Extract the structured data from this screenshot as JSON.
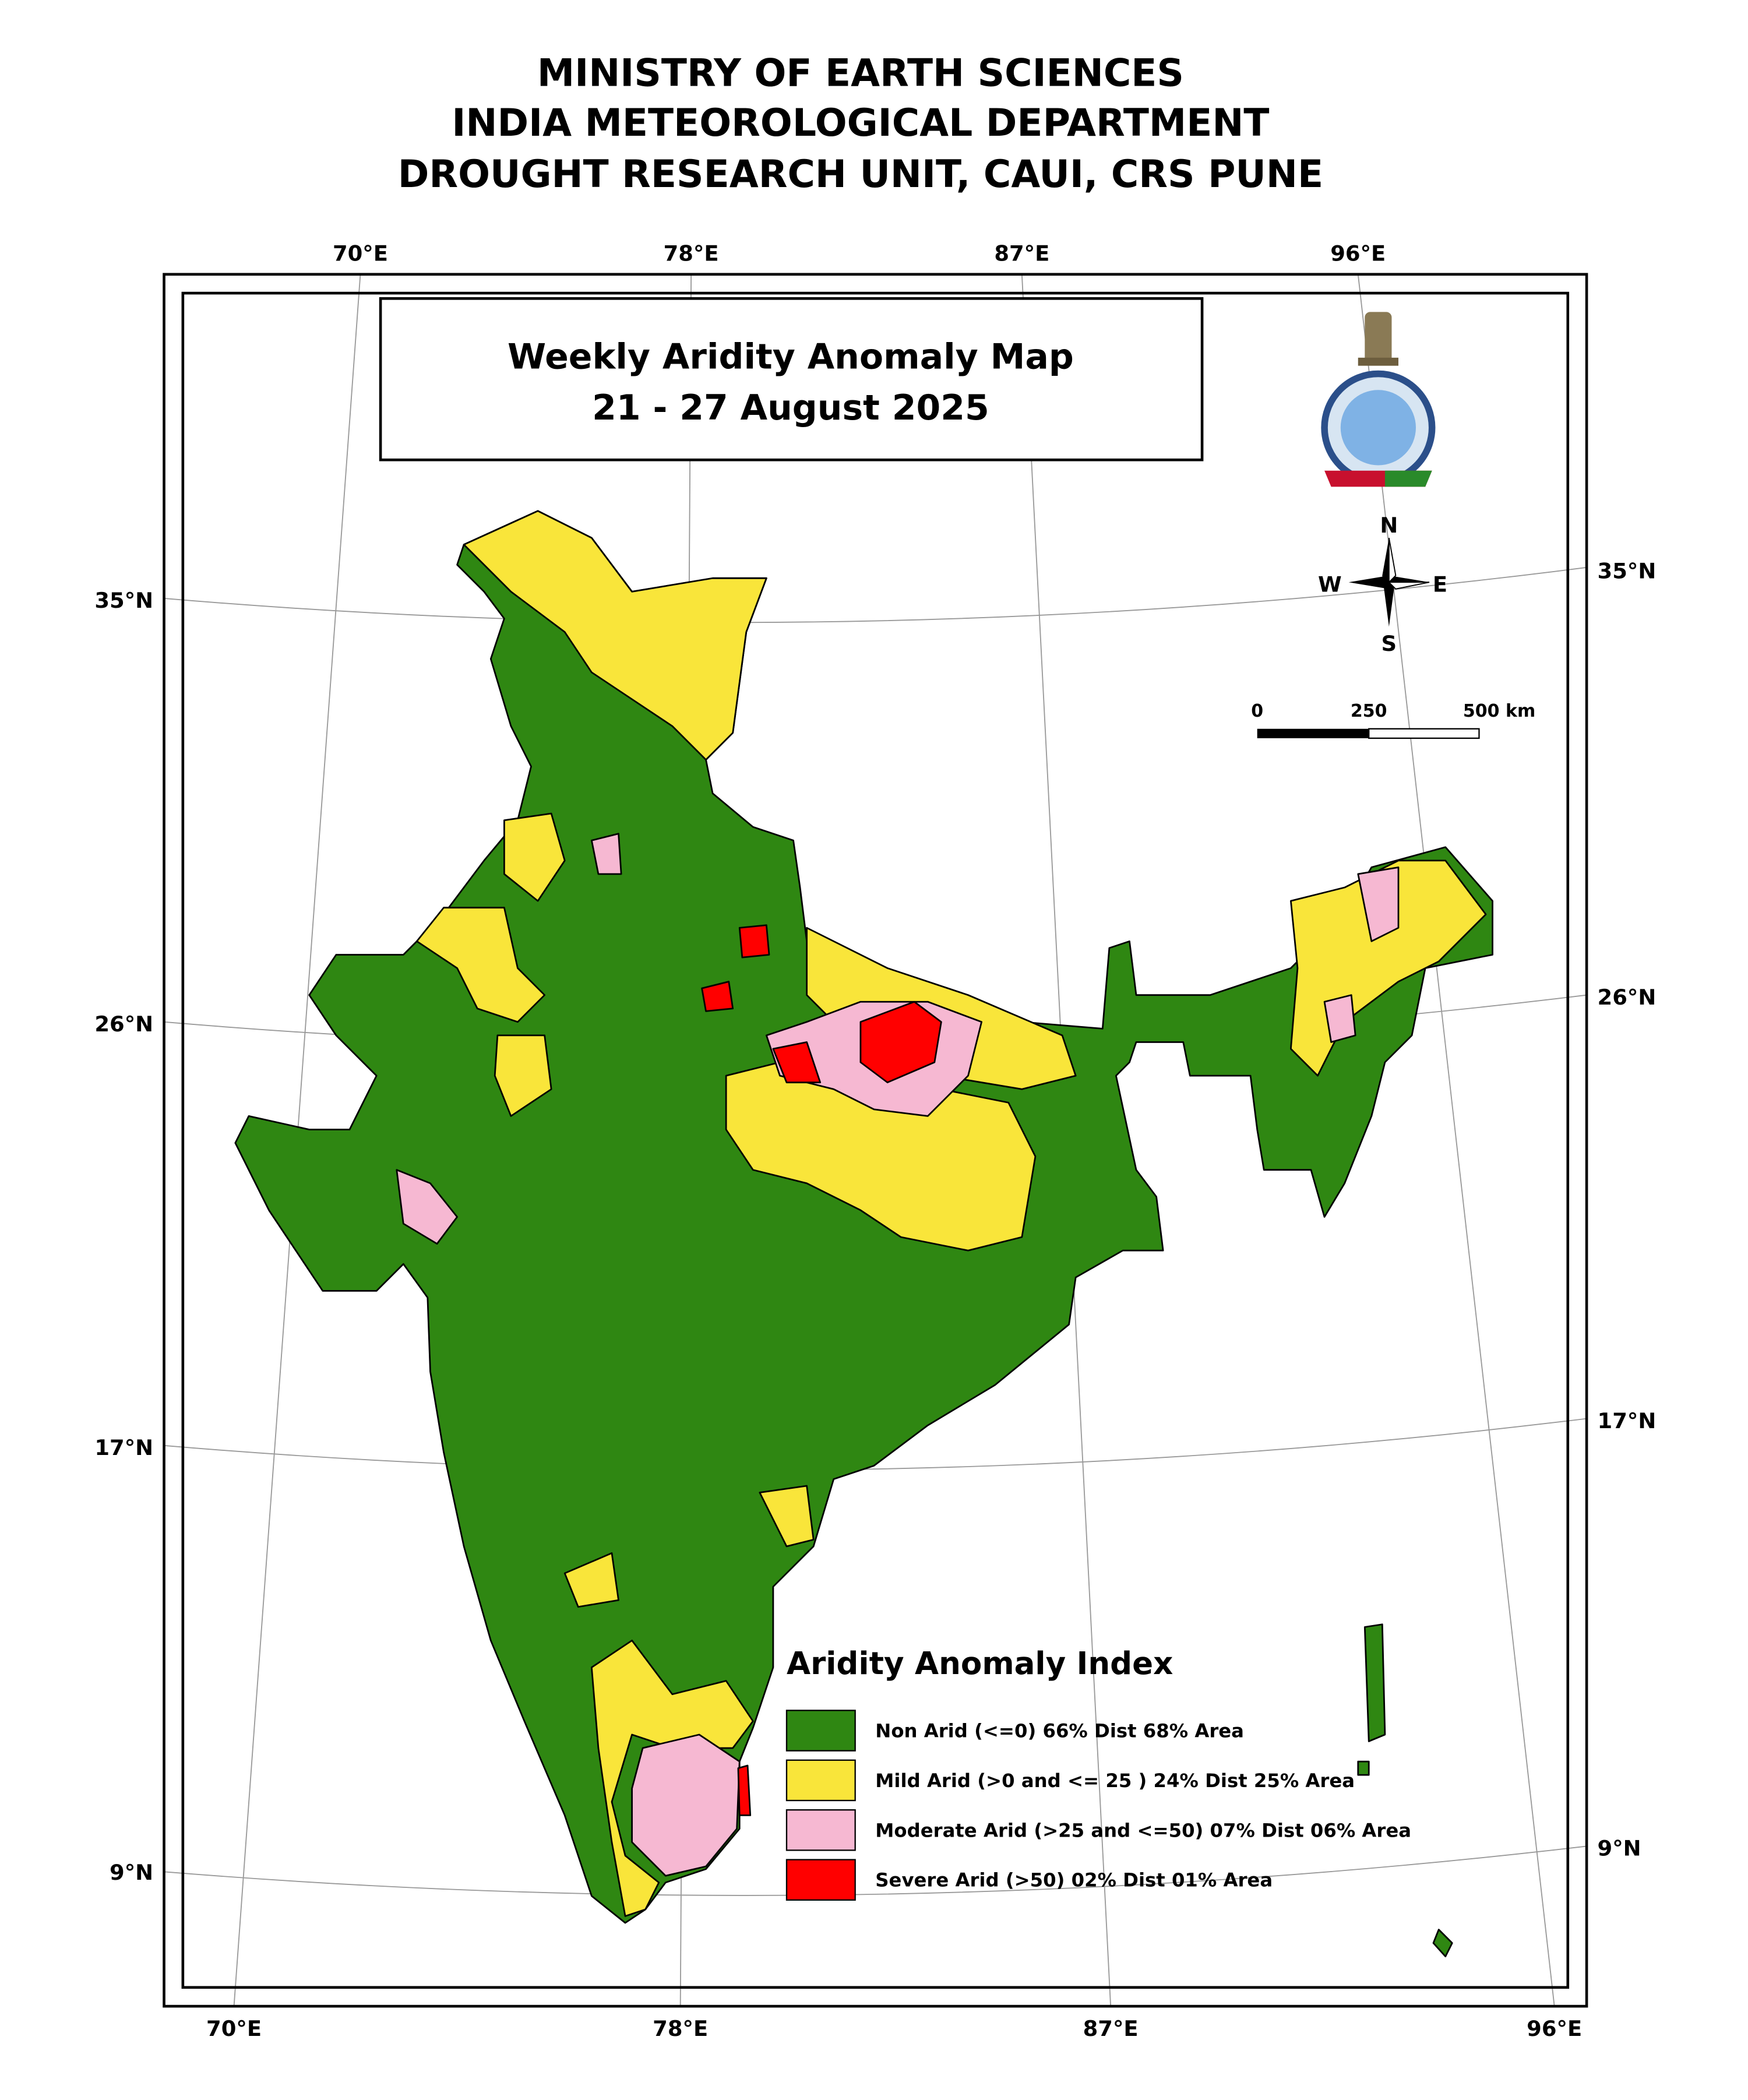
{
  "header": {
    "lines": [
      "MINISTRY OF EARTH SCIENCES",
      "INDIA METEOROLOGICAL DEPARTMENT",
      "DROUGHT RESEARCH UNIT, CAUI, CRS PUNE"
    ]
  },
  "map": {
    "title": "Weekly Aridity Anomaly Map",
    "subtitle": "21  - 27 August  2025",
    "top_labels": [
      "70°E",
      "78°E",
      "87°E",
      "96°E"
    ],
    "bottom_labels": [
      "70°E",
      "78°E",
      "87°E",
      "96°E"
    ],
    "left_labels": [
      "35°N",
      "26°N",
      "17°N",
      "9°N"
    ],
    "right_labels": [
      "35°N",
      "26°N",
      "17°N",
      "9°N"
    ],
    "compass": {
      "north": "N",
      "south": "S",
      "east": "E",
      "west": "W"
    },
    "scale_labels": [
      "0",
      "250",
      "500 km"
    ],
    "legend": {
      "title": "Aridity Anomaly Index",
      "items": [
        {
          "label": "Non Arid (<=0) 66% Dist 68% Area",
          "color": "#2f8712"
        },
        {
          "label": "Mild Arid (>0 and <= 25 ) 24% Dist  25% Area",
          "color": "#f9e53a"
        },
        {
          "label": "Moderate Arid (>25 and <=50) 07% Dist 06% Area",
          "color": "#f6b8d2"
        },
        {
          "label": "Severe Arid (>50) 02% Dist  01% Area",
          "color": "#ff0000"
        }
      ]
    }
  }
}
